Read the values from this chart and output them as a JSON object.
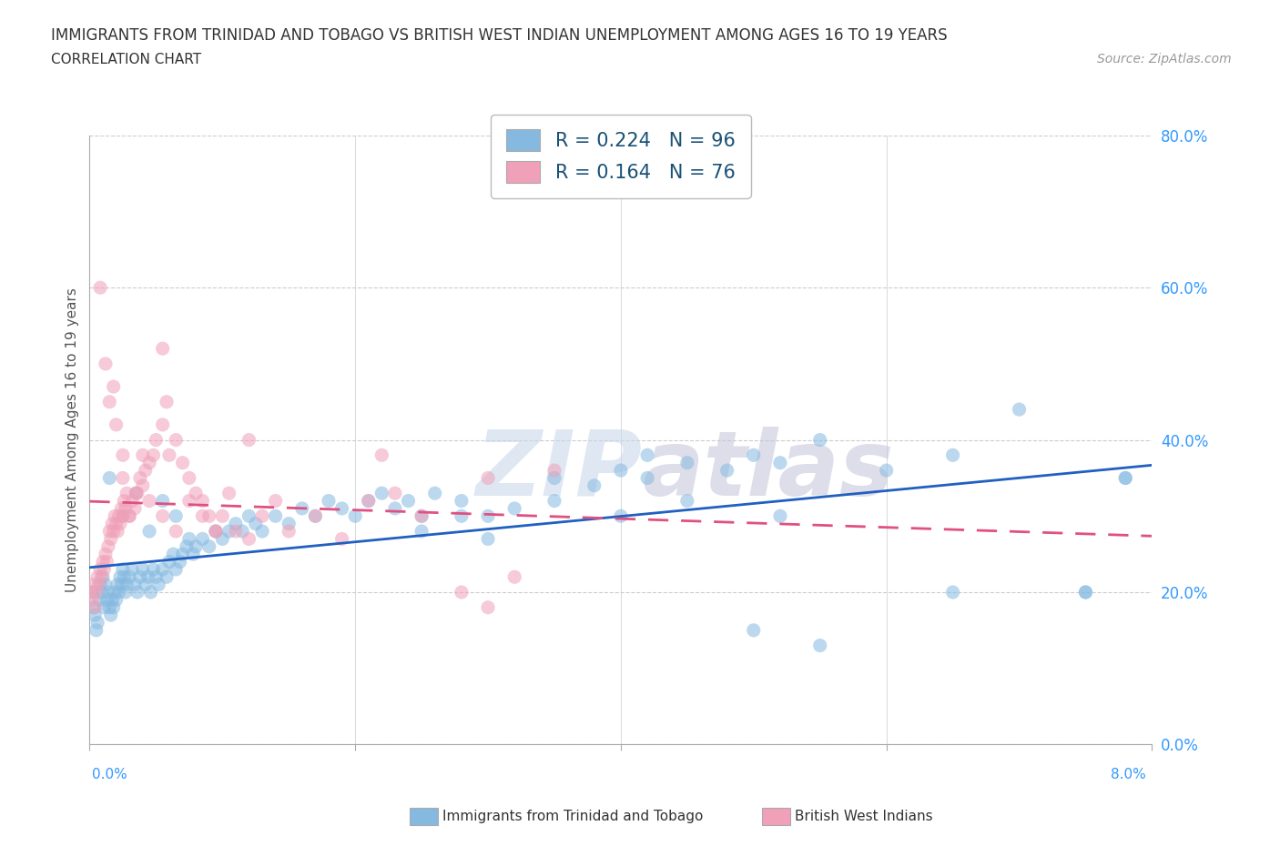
{
  "title": "IMMIGRANTS FROM TRINIDAD AND TOBAGO VS BRITISH WEST INDIAN UNEMPLOYMENT AMONG AGES 16 TO 19 YEARS",
  "subtitle": "CORRELATION CHART",
  "source": "Source: ZipAtlas.com",
  "ylabel": "Unemployment Among Ages 16 to 19 years",
  "legend1_label": "Immigrants from Trinidad and Tobago",
  "legend2_label": "British West Indians",
  "R1": 0.224,
  "N1": 96,
  "R2": 0.164,
  "N2": 76,
  "blue_color": "#85b9e0",
  "pink_color": "#f0a0b8",
  "blue_line_color": "#2060c0",
  "pink_line_color": "#e05080",
  "xmin": 0.0,
  "xmax": 8.0,
  "ymin": 0.0,
  "ymax": 80.0,
  "ytick_values": [
    0,
    20,
    40,
    60,
    80
  ],
  "ytick_labels": [
    "0.0%",
    "20.0%",
    "40.0%",
    "60.0%",
    "80.0%"
  ],
  "xtick_values": [
    0,
    2,
    4,
    6,
    8
  ],
  "grid_color": "#cccccc",
  "blue_x": [
    0.02,
    0.03,
    0.04,
    0.05,
    0.06,
    0.07,
    0.08,
    0.09,
    0.1,
    0.11,
    0.12,
    0.13,
    0.14,
    0.15,
    0.16,
    0.17,
    0.18,
    0.19,
    0.2,
    0.21,
    0.22,
    0.23,
    0.24,
    0.25,
    0.26,
    0.27,
    0.28,
    0.3,
    0.32,
    0.34,
    0.36,
    0.38,
    0.4,
    0.42,
    0.44,
    0.46,
    0.48,
    0.5,
    0.52,
    0.55,
    0.58,
    0.6,
    0.63,
    0.65,
    0.68,
    0.7,
    0.73,
    0.75,
    0.78,
    0.8,
    0.85,
    0.9,
    0.95,
    1.0,
    1.05,
    1.1,
    1.15,
    1.2,
    1.25,
    1.3,
    1.4,
    1.5,
    1.6,
    1.7,
    1.8,
    1.9,
    2.0,
    2.1,
    2.2,
    2.3,
    2.4,
    2.5,
    2.6,
    2.8,
    3.0,
    3.2,
    3.5,
    3.8,
    4.0,
    4.2,
    4.5,
    4.8,
    5.0,
    5.2,
    5.5,
    6.0,
    6.5,
    7.0,
    7.5,
    7.8,
    0.15,
    0.25,
    0.35,
    0.45,
    0.55,
    0.65
  ],
  "blue_y": [
    20,
    18,
    17,
    15,
    16,
    19,
    21,
    20,
    22,
    18,
    21,
    19,
    20,
    18,
    17,
    19,
    18,
    20,
    19,
    21,
    20,
    22,
    21,
    23,
    22,
    20,
    21,
    22,
    23,
    21,
    20,
    22,
    23,
    21,
    22,
    20,
    23,
    22,
    21,
    23,
    22,
    24,
    25,
    23,
    24,
    25,
    26,
    27,
    25,
    26,
    27,
    26,
    28,
    27,
    28,
    29,
    28,
    30,
    29,
    28,
    30,
    29,
    31,
    30,
    32,
    31,
    30,
    32,
    33,
    31,
    32,
    30,
    33,
    32,
    30,
    31,
    35,
    34,
    36,
    35,
    37,
    36,
    38,
    37,
    40,
    36,
    38,
    44,
    20,
    35,
    35,
    30,
    33,
    28,
    32,
    30
  ],
  "pink_x": [
    0.01,
    0.02,
    0.03,
    0.04,
    0.05,
    0.06,
    0.07,
    0.08,
    0.09,
    0.1,
    0.11,
    0.12,
    0.13,
    0.14,
    0.15,
    0.16,
    0.17,
    0.18,
    0.19,
    0.2,
    0.21,
    0.22,
    0.23,
    0.24,
    0.25,
    0.26,
    0.27,
    0.28,
    0.3,
    0.32,
    0.34,
    0.36,
    0.38,
    0.4,
    0.42,
    0.45,
    0.48,
    0.5,
    0.55,
    0.58,
    0.6,
    0.65,
    0.7,
    0.75,
    0.8,
    0.85,
    0.9,
    0.95,
    1.0,
    1.1,
    1.2,
    1.3,
    1.4,
    1.5,
    1.7,
    1.9,
    2.1,
    2.3,
    2.5,
    2.8,
    3.0,
    3.2,
    3.5,
    0.15,
    0.2,
    0.25,
    0.3,
    0.35,
    0.4,
    0.45,
    0.55,
    0.65,
    0.75,
    0.85,
    0.95,
    1.05
  ],
  "pink_y": [
    20,
    19,
    21,
    18,
    20,
    22,
    21,
    23,
    22,
    24,
    23,
    25,
    24,
    26,
    28,
    27,
    29,
    28,
    30,
    29,
    28,
    30,
    29,
    31,
    30,
    32,
    31,
    33,
    30,
    32,
    31,
    33,
    35,
    34,
    36,
    37,
    38,
    40,
    42,
    45,
    38,
    40,
    37,
    35,
    33,
    32,
    30,
    28,
    30,
    28,
    27,
    30,
    32,
    28,
    30,
    27,
    32,
    33,
    30,
    20,
    18,
    22,
    36,
    45,
    42,
    35,
    30,
    33,
    38,
    32,
    30,
    28,
    32,
    30,
    28,
    33
  ],
  "blue_extra_x": [
    2.5,
    3.0,
    4.0,
    4.5,
    5.0,
    5.5,
    6.5,
    7.5,
    7.8,
    2.8,
    3.5,
    4.2,
    5.2
  ],
  "blue_extra_y": [
    28,
    27,
    30,
    32,
    15,
    13,
    20,
    20,
    35,
    30,
    32,
    38,
    30
  ],
  "pink_extra_x": [
    0.08,
    0.12,
    0.18,
    0.25,
    0.55,
    1.2,
    2.2,
    3.0
  ],
  "pink_extra_y": [
    60,
    50,
    47,
    38,
    52,
    40,
    38,
    35
  ]
}
